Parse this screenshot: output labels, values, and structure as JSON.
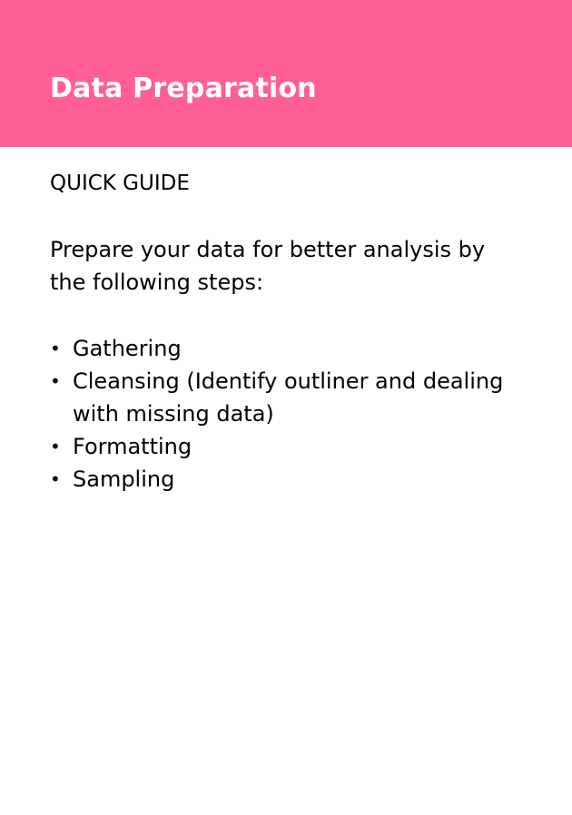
{
  "theme": {
    "header_bg": "#ff5f96",
    "header_text": "#ffffff",
    "body_text": "#000000"
  },
  "header": {
    "title": "Data Preparation"
  },
  "guide": {
    "heading": "QUICK GUIDE",
    "intro": "Prepare your data for better analysis by the following steps:",
    "bullet_glyph": "•",
    "steps": [
      {
        "label": "Gathering"
      },
      {
        "label": "Cleansing (Identify outliner and dealing with missing data)"
      },
      {
        "label": "Formatting"
      },
      {
        "label": "Sampling"
      }
    ]
  }
}
